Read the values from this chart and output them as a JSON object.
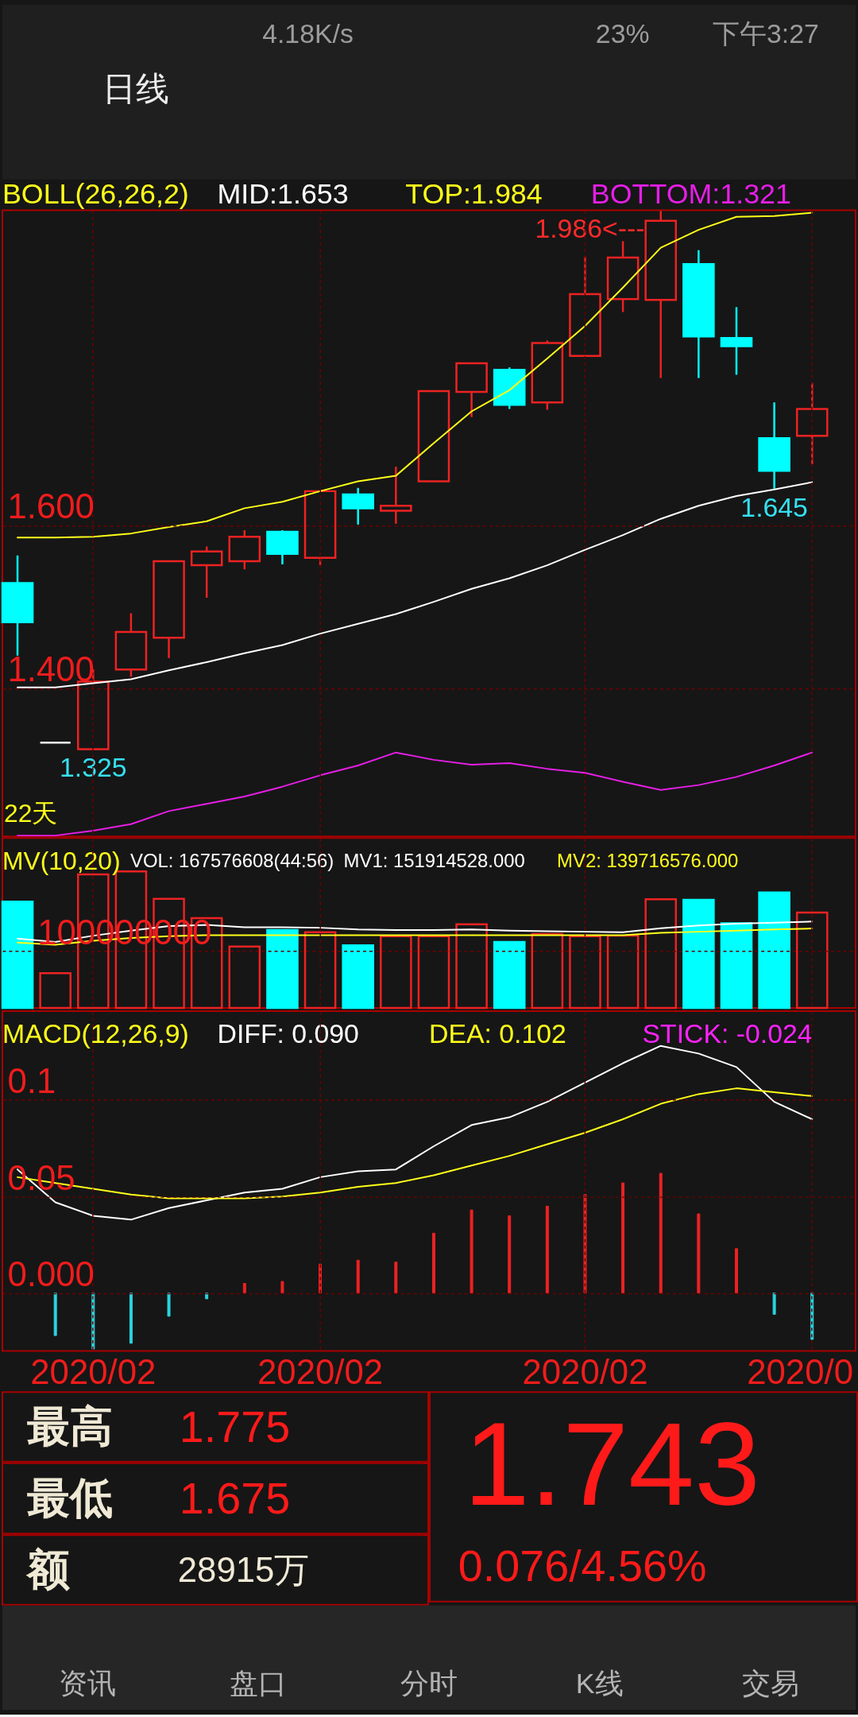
{
  "chart_data": [
    {
      "type": "other",
      "annotations": [
        "4.18K/s",
        "23%",
        "下午3:27",
        "日线"
      ]
    },
    {
      "type": "candlestick",
      "title": "BOLL(26,26,2)",
      "categories": [
        null,
        null,
        "2020/02",
        null,
        null,
        null,
        null,
        null,
        "2020/02",
        null,
        null,
        null,
        null,
        null,
        null,
        "2020/02",
        null,
        null,
        null,
        null,
        null,
        "2020/0"
      ],
      "ohlc": [
        [
          1.529,
          1.563,
          1.44,
          1.481
        ],
        [
          1.333,
          1.333,
          1.333,
          1.333
        ],
        [
          1.325,
          1.423,
          1.325,
          1.408
        ],
        [
          1.423,
          1.492,
          1.414,
          1.469
        ],
        [
          1.462,
          1.556,
          1.437,
          1.556
        ],
        [
          1.551,
          1.574,
          1.511,
          1.568
        ],
        [
          1.556,
          1.594,
          1.546,
          1.586
        ],
        [
          1.592,
          1.594,
          1.552,
          1.565
        ],
        [
          1.56,
          1.642,
          1.551,
          1.642
        ],
        [
          1.638,
          1.646,
          1.601,
          1.621
        ],
        [
          1.618,
          1.672,
          1.602,
          1.624
        ],
        [
          1.654,
          1.765,
          1.654,
          1.765
        ],
        [
          1.764,
          1.799,
          1.733,
          1.799
        ],
        [
          1.791,
          1.794,
          1.743,
          1.748
        ],
        [
          1.751,
          1.827,
          1.742,
          1.824
        ],
        [
          1.808,
          1.93,
          1.808,
          1.884
        ],
        [
          1.878,
          1.949,
          1.862,
          1.929
        ],
        [
          1.877,
          1.986,
          1.781,
          1.974
        ],
        [
          1.921,
          1.938,
          1.781,
          1.832
        ],
        [
          1.83,
          1.868,
          1.785,
          1.82
        ],
        [
          1.707,
          1.751,
          1.645,
          1.667
        ],
        [
          1.71,
          1.775,
          1.675,
          1.743
        ]
      ],
      "colors": [
        "#00ffff",
        "#ffffff",
        "#ee2222",
        "#ee2222",
        "#ee2222",
        "#ee2222",
        "#ee2222",
        "#00ffff",
        "#ee2222",
        "#00ffff",
        "#ee2222",
        "#ee2222",
        "#ee2222",
        "#00ffff",
        "#ee2222",
        "#ee2222",
        "#ee2222",
        "#ee2222",
        "#00ffff",
        "#00ffff",
        "#00ffff",
        "#ee2222"
      ],
      "series": [
        {
          "name": "MID:1.653",
          "type": "line",
          "color": "#ffffff",
          "values": [
            1.401,
            1.401,
            1.406,
            1.411,
            1.422,
            1.432,
            1.443,
            1.453,
            1.467,
            1.479,
            1.491,
            1.506,
            1.522,
            1.535,
            1.551,
            1.57,
            1.588,
            1.608,
            1.624,
            1.636,
            1.644,
            1.653
          ]
        },
        {
          "name": "TOP:1.984",
          "type": "line",
          "color": "#ffff1a",
          "values": [
            1.585,
            1.585,
            1.586,
            1.59,
            1.598,
            1.605,
            1.621,
            1.629,
            1.642,
            1.654,
            1.661,
            1.701,
            1.74,
            1.766,
            1.805,
            1.845,
            1.892,
            1.941,
            1.963,
            1.979,
            1.98,
            1.984
          ]
        },
        {
          "name": "BOTTOM:1.321",
          "type": "line",
          "color": "#e61ee6",
          "values": [
            1.219,
            1.219,
            1.225,
            1.233,
            1.249,
            1.258,
            1.267,
            1.279,
            1.293,
            1.305,
            1.321,
            1.312,
            1.306,
            1.308,
            1.301,
            1.296,
            1.285,
            1.275,
            1.281,
            1.291,
            1.305,
            1.321
          ]
        }
      ],
      "ylim": [
        1.218,
        1.987
      ],
      "yticks": [
        {
          "value": 1.4,
          "label": "1.400"
        },
        {
          "value": 1.6,
          "label": "1.600"
        }
      ],
      "grid": true,
      "tick_labels": "y",
      "legend": "top",
      "annotations": [
        "1.986<---",
        {
          "text": "1.325",
          "y": 1.325
        },
        {
          "text": "1.645",
          "y": 1.645
        },
        "22天"
      ]
    },
    {
      "type": "bar",
      "title": "MV(10,20)",
      "categories": [
        null,
        null,
        "2020/02",
        null,
        null,
        null,
        null,
        null,
        "2020/02",
        null,
        null,
        null,
        null,
        null,
        null,
        "2020/02",
        null,
        null,
        null,
        null,
        null,
        "2020/0"
      ],
      "series": [
        {
          "colors": [
            "#00ffff",
            "#ee2222",
            "#ee2222",
            "#ee2222",
            "#ee2222",
            "#ee2222",
            "#ee2222",
            "#00ffff",
            "#ee2222",
            "#00ffff",
            "#ee2222",
            "#ee2222",
            "#ee2222",
            "#00ffff",
            "#ee2222",
            "#ee2222",
            "#ee2222",
            "#ee2222",
            "#00ffff",
            "#00ffff",
            "#00ffff",
            "#ee2222"
          ],
          "values": [
            187000000,
            61000000,
            235000000,
            240000000,
            192000000,
            158000000,
            108000000,
            137000000,
            133000000,
            110000000,
            126000000,
            126000000,
            147000000,
            116000000,
            130000000,
            126000000,
            127000000,
            191000000,
            190000000,
            149000000,
            203000000,
            167576608
          ]
        },
        {
          "name": "MV1: 151914528.000",
          "type": "line",
          "color": "#ffffff",
          "values": [
            122000000,
            116000000,
            127000000,
            136000000,
            144000000,
            146000000,
            142000000,
            142000000,
            141000000,
            138000000,
            137000000,
            137000000,
            138000000,
            136000000,
            135000000,
            134000000,
            133000000,
            140000000,
            145000000,
            148000000,
            150000000,
            151914528
          ]
        },
        {
          "name": "MV2: 139716576.000",
          "type": "line",
          "color": "#ffff1a",
          "values": [
            115000000,
            111000000,
            118000000,
            123000000,
            126000000,
            128000000,
            128000000,
            128000000,
            128000000,
            128000000,
            128000000,
            128000000,
            128000000,
            128000000,
            128000000,
            128000000,
            128000000,
            132000000,
            134000000,
            136000000,
            138000000,
            139716576
          ]
        }
      ],
      "ylim": [
        0,
        299000000
      ],
      "yticks": [
        100000000
      ],
      "grid": true,
      "tick_labels": "y",
      "legend": "top",
      "annotations": [
        "VOL: 167576608(44:56)"
      ]
    },
    {
      "type": "line",
      "title": "MACD(12,26,9)",
      "categories": [
        null,
        null,
        "2020/02",
        null,
        null,
        null,
        null,
        null,
        "2020/02",
        null,
        null,
        null,
        null,
        null,
        null,
        "2020/02",
        null,
        null,
        null,
        null,
        null,
        "2020/0"
      ],
      "series": [
        {
          "name": "DIFF: 0.090",
          "color": "#ffffff",
          "values": [
            0.064,
            0.047,
            0.04,
            0.038,
            0.044,
            0.048,
            0.052,
            0.054,
            0.06,
            0.063,
            0.064,
            0.076,
            0.087,
            0.091,
            0.099,
            0.109,
            0.119,
            0.128,
            0.124,
            0.117,
            0.099,
            0.09
          ]
        },
        {
          "name": "DEA: 0.102",
          "color": "#ffff1a",
          "values": [
            0.06,
            0.057,
            0.054,
            0.051,
            0.049,
            0.049,
            0.049,
            0.05,
            0.052,
            0.055,
            0.057,
            0.061,
            0.066,
            0.071,
            0.077,
            0.083,
            0.09,
            0.098,
            0.103,
            0.106,
            0.104,
            0.102
          ]
        },
        {
          "type": "bar",
          "colors": [
            "#ee2222",
            "#2ad4e0",
            "#2ad4e0",
            "#2ad4e0",
            "#2ad4e0",
            "#2ad4e0",
            "#ee2222",
            "#ee2222",
            "#ee2222",
            "#ee2222",
            "#ee2222",
            "#ee2222",
            "#ee2222",
            "#ee2222",
            "#ee2222",
            "#ee2222",
            "#ee2222",
            "#ee2222",
            "#ee2222",
            "#ee2222",
            "#2ad4e0",
            "#2ad4e0"
          ],
          "values": [
            null,
            -0.022,
            -0.029,
            -0.026,
            -0.012,
            -0.003,
            0.005,
            0.006,
            0.015,
            0.017,
            0.016,
            0.031,
            0.043,
            0.04,
            0.045,
            0.051,
            0.057,
            0.062,
            0.041,
            0.023,
            -0.011,
            -0.024
          ]
        }
      ],
      "ylim": [
        -0.03,
        0.146
      ],
      "yticks": [
        {
          "value": 0,
          "label": "0.000"
        },
        0.05,
        0.1
      ],
      "grid": true,
      "legend": "top",
      "annotations": [
        "STICK: -0.024"
      ]
    },
    {
      "type": "other",
      "annotations": [
        "最高",
        "1.775",
        "最低",
        "1.675",
        "额",
        "28915万",
        "1.743",
        "0.076/4.56%"
      ]
    },
    {
      "type": "other",
      "annotations": [
        "资讯",
        "盘口",
        "分时",
        "K线",
        "交易"
      ]
    }
  ]
}
